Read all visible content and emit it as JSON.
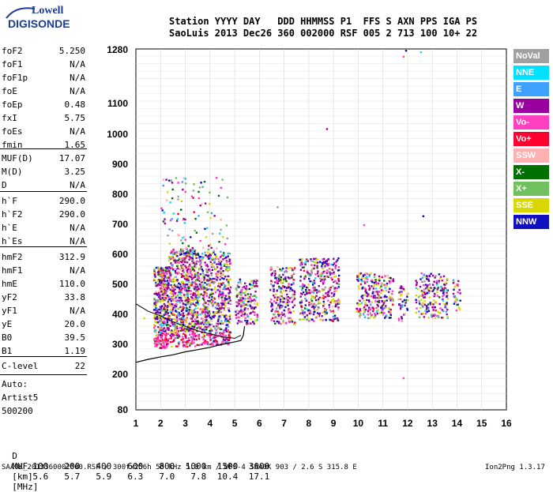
{
  "logo": {
    "top": "Lowell",
    "bottom": "DIGISONDE"
  },
  "header": {
    "line1": "Station YYYY DAY   DDD HHMMSS P1  FFS S AXN PPS IGA PS",
    "line2": "SaoLuis 2013 Dec26 360 002000 RSF 005 2 713 100 10+ 22"
  },
  "params_group1": [
    {
      "k": "foF2",
      "v": "5.250"
    },
    {
      "k": "foF1",
      "v": "N/A"
    },
    {
      "k": "foF1p",
      "v": "N/A"
    },
    {
      "k": "foE",
      "v": "N/A"
    },
    {
      "k": "foEp",
      "v": "0.48"
    },
    {
      "k": "fxI",
      "v": "5.75"
    },
    {
      "k": "foEs",
      "v": "N/A"
    },
    {
      "k": "fmin",
      "v": "1.65"
    }
  ],
  "params_group2": [
    {
      "k": "MUF(D)",
      "v": "17.07"
    },
    {
      "k": "M(D)",
      "v": "3.25"
    },
    {
      "k": "D",
      "v": "N/A"
    }
  ],
  "params_group3": [
    {
      "k": "h`F",
      "v": "290.0"
    },
    {
      "k": "h`F2",
      "v": "290.0"
    },
    {
      "k": "h`E",
      "v": "N/A"
    },
    {
      "k": "h`Es",
      "v": "N/A"
    }
  ],
  "params_group4": [
    {
      "k": "hmF2",
      "v": "312.9"
    },
    {
      "k": "hmF1",
      "v": "N/A"
    },
    {
      "k": "hmE",
      "v": "110.0"
    },
    {
      "k": "yF2",
      "v": "33.8"
    },
    {
      "k": "yF1",
      "v": "N/A"
    },
    {
      "k": "yE",
      "v": "20.0"
    },
    {
      "k": "B0",
      "v": "39.5"
    },
    {
      "k": "B1",
      "v": "1.19"
    }
  ],
  "params_group5": [
    {
      "k": "C-level",
      "v": "22"
    }
  ],
  "auto": {
    "label": "Auto:",
    "artist": "Artist5",
    "version": "500200"
  },
  "legend": [
    {
      "label": "NoVal",
      "color": "#a0a0a0"
    },
    {
      "label": "NNE",
      "color": "#00e0ff"
    },
    {
      "label": "E",
      "color": "#3ea0ff"
    },
    {
      "label": "W",
      "color": "#9a00a0"
    },
    {
      "label": "Vo-",
      "color": "#ff40c0"
    },
    {
      "label": "Vo+",
      "color": "#ff0030"
    },
    {
      "label": "SSW",
      "color": "#ffb0b0"
    },
    {
      "label": "X-",
      "color": "#007000"
    },
    {
      "label": "X+",
      "color": "#70c060"
    },
    {
      "label": "SSE",
      "color": "#d8d800"
    },
    {
      "label": "NNW",
      "color": "#1010c0"
    }
  ],
  "chart_data": {
    "type": "scatter",
    "x_ticks": [
      "1",
      "2",
      "3",
      "4",
      "5",
      "6",
      "7",
      "8",
      "9",
      "10",
      "11",
      "12",
      "13",
      "14",
      "15",
      "16"
    ],
    "y_ticks": [
      "80",
      "200",
      "300",
      "400",
      "500",
      "600",
      "700",
      "800",
      "900",
      "1000",
      "1100",
      "1280"
    ],
    "xlim": [
      1,
      16
    ],
    "y_range_labels": [
      80,
      1280
    ],
    "x_unit": "MHz",
    "y_unit": "km",
    "profile": {
      "freq": [
        1.0,
        1.5,
        2.0,
        2.5,
        3.0,
        3.5,
        4.0,
        4.5,
        5.0,
        5.25
      ],
      "height": [
        240,
        250,
        258,
        265,
        275,
        282,
        290,
        300,
        308,
        312.9
      ]
    },
    "trace_upper": {
      "freq": [
        1.0,
        1.5,
        2.0,
        2.5,
        3.0,
        3.5,
        4.0,
        4.5,
        5.0,
        5.25
      ],
      "height": [
        435,
        410,
        395,
        375,
        360,
        345,
        335,
        325,
        320,
        330
      ]
    }
  },
  "muf_table": {
    "d_label": "D",
    "d_values": [
      "100",
      "200",
      "400",
      "600",
      "800",
      "1000",
      "1500",
      "3000"
    ],
    "d_unit": "[km]",
    "muf_label": "MUF",
    "muf_values": [
      "5.6",
      "5.7",
      "5.9",
      "6.3",
      "7.0",
      "7.8",
      "10.4",
      "17.1"
    ],
    "muf_unit": "[MHz]"
  },
  "footer": {
    "left": "SAA0K_2013360002000.RSF / 300fx256h 50 kHz 5.0 km / DPS-4 SAA0K 903 / 2.6 S 315.8 E",
    "right": "Ion2Png 1.3.17"
  }
}
